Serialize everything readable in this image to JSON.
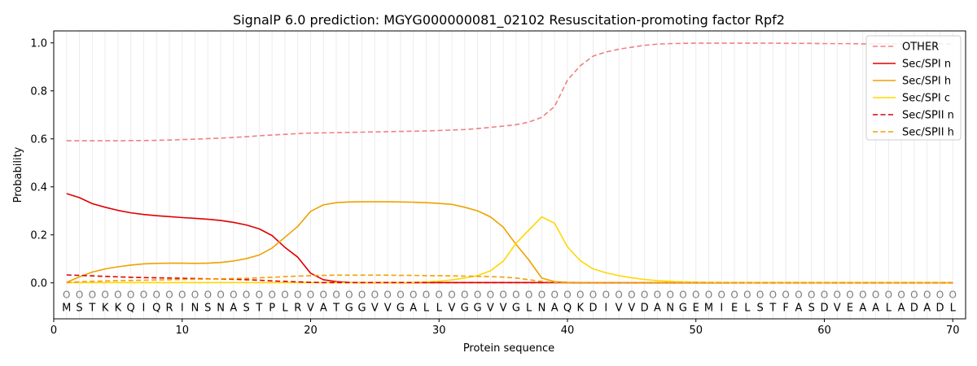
{
  "chart_data": {
    "type": "line",
    "title": "SignalP 6.0 prediction: MGYG000000081_02102 Resuscitation-promoting factor Rpf2",
    "xlabel": "Protein sequence",
    "ylabel": "Probability",
    "xlim": [
      0,
      71
    ],
    "ylim": [
      -0.15,
      1.05
    ],
    "xticks": [
      0,
      10,
      20,
      30,
      40,
      50,
      60,
      70
    ],
    "yticks": [
      0.0,
      0.2,
      0.4,
      0.6,
      0.8,
      1.0
    ],
    "xtick_labels": [
      "0",
      "10",
      "20",
      "30",
      "40",
      "50",
      "60",
      "70"
    ],
    "ytick_labels": [
      "0.0",
      "0.2",
      "0.4",
      "0.6",
      "0.8",
      "1.0"
    ],
    "sequence": "MSTKKQIQRINSNASTPLRVATGGVVGALLVGGVVGLNAQKDIVVDANGEMIELSTFASDVEAALADADL",
    "region_marker": "O",
    "x": [
      1,
      2,
      3,
      4,
      5,
      6,
      7,
      8,
      9,
      10,
      11,
      12,
      13,
      14,
      15,
      16,
      17,
      18,
      19,
      20,
      21,
      22,
      23,
      24,
      25,
      26,
      27,
      28,
      29,
      30,
      31,
      32,
      33,
      34,
      35,
      36,
      37,
      38,
      39,
      40,
      41,
      42,
      43,
      44,
      45,
      46,
      47,
      48,
      49,
      50,
      51,
      52,
      53,
      54,
      55,
      56,
      57,
      58,
      59,
      60,
      61,
      62,
      63,
      64,
      65,
      66,
      67,
      68,
      69,
      70
    ],
    "series": [
      {
        "name": "OTHER",
        "color": "#f08080",
        "style": "dashed",
        "values": [
          0.592,
          0.592,
          0.592,
          0.592,
          0.592,
          0.593,
          0.593,
          0.594,
          0.595,
          0.597,
          0.599,
          0.601,
          0.603,
          0.606,
          0.609,
          0.613,
          0.616,
          0.619,
          0.622,
          0.624,
          0.625,
          0.626,
          0.627,
          0.628,
          0.629,
          0.63,
          0.631,
          0.632,
          0.633,
          0.635,
          0.637,
          0.639,
          0.643,
          0.648,
          0.653,
          0.659,
          0.67,
          0.69,
          0.735,
          0.845,
          0.905,
          0.945,
          0.962,
          0.974,
          0.982,
          0.99,
          0.995,
          0.997,
          0.998,
          0.999,
          0.999,
          0.999,
          0.999,
          0.999,
          0.999,
          0.999,
          0.998,
          0.998,
          0.998,
          0.997,
          0.997,
          0.997,
          0.996,
          0.996,
          0.996,
          0.996,
          0.996,
          0.996,
          0.996,
          0.996
        ]
      },
      {
        "name": "Sec/SPI n",
        "color": "#e00000",
        "style": "solid",
        "values": [
          0.372,
          0.355,
          0.33,
          0.315,
          0.302,
          0.292,
          0.285,
          0.28,
          0.276,
          0.272,
          0.269,
          0.265,
          0.26,
          0.252,
          0.241,
          0.225,
          0.197,
          0.148,
          0.107,
          0.04,
          0.013,
          0.005,
          0.002,
          0.001,
          0.001,
          0.001,
          0.001,
          0.001,
          0.001,
          0.001,
          0.001,
          0.001,
          0.001,
          0.001,
          0.001,
          0.001,
          0.001,
          0.001,
          0.001,
          0.001,
          0.0,
          0.0,
          0.0,
          0.0,
          0.0,
          0.0,
          0.0,
          0.0,
          0.0,
          0.0,
          0.0,
          0.0,
          0.0,
          0.0,
          0.0,
          0.0,
          0.0,
          0.0,
          0.0,
          0.0,
          0.0,
          0.0,
          0.0,
          0.0,
          0.0,
          0.0,
          0.0,
          0.0,
          0.0,
          0.0
        ]
      },
      {
        "name": "Sec/SPI h",
        "color": "#f0a000",
        "style": "solid",
        "values": [
          0.002,
          0.025,
          0.045,
          0.058,
          0.067,
          0.074,
          0.079,
          0.081,
          0.082,
          0.082,
          0.081,
          0.082,
          0.085,
          0.091,
          0.101,
          0.116,
          0.145,
          0.19,
          0.235,
          0.298,
          0.325,
          0.334,
          0.337,
          0.338,
          0.338,
          0.338,
          0.337,
          0.336,
          0.334,
          0.331,
          0.327,
          0.315,
          0.3,
          0.275,
          0.232,
          0.16,
          0.095,
          0.02,
          0.005,
          0.002,
          0.001,
          0.001,
          0.001,
          0.001,
          0.001,
          0.001,
          0.001,
          0.001,
          0.001,
          0.001,
          0.001,
          0.001,
          0.001,
          0.001,
          0.001,
          0.001,
          0.001,
          0.001,
          0.001,
          0.001,
          0.001,
          0.001,
          0.001,
          0.001,
          0.001,
          0.001,
          0.001,
          0.001,
          0.001,
          0.001
        ]
      },
      {
        "name": "Sec/SPI c",
        "color": "#ffd700",
        "style": "solid",
        "values": [
          0.001,
          0.001,
          0.001,
          0.001,
          0.001,
          0.001,
          0.001,
          0.001,
          0.001,
          0.001,
          0.001,
          0.001,
          0.001,
          0.001,
          0.001,
          0.001,
          0.001,
          0.001,
          0.001,
          0.001,
          0.001,
          0.001,
          0.001,
          0.001,
          0.001,
          0.001,
          0.001,
          0.002,
          0.004,
          0.007,
          0.012,
          0.02,
          0.03,
          0.05,
          0.09,
          0.165,
          0.22,
          0.275,
          0.248,
          0.15,
          0.092,
          0.058,
          0.042,
          0.03,
          0.021,
          0.014,
          0.009,
          0.006,
          0.004,
          0.003,
          0.002,
          0.002,
          0.001,
          0.001,
          0.001,
          0.001,
          0.001,
          0.001,
          0.001,
          0.001,
          0.001,
          0.001,
          0.001,
          0.001,
          0.001,
          0.001,
          0.001,
          0.001,
          0.001,
          0.001
        ]
      },
      {
        "name": "Sec/SPII n",
        "color": "#e00000",
        "style": "dashed",
        "values": [
          0.033,
          0.031,
          0.029,
          0.027,
          0.025,
          0.023,
          0.022,
          0.021,
          0.02,
          0.019,
          0.018,
          0.017,
          0.016,
          0.015,
          0.013,
          0.011,
          0.008,
          0.006,
          0.004,
          0.002,
          0.001,
          0.001,
          0.001,
          0.001,
          0.001,
          0.001,
          0.001,
          0.001,
          0.001,
          0.001,
          0.001,
          0.001,
          0.001,
          0.001,
          0.001,
          0.001,
          0.001,
          0.001,
          0.001,
          0.001,
          0.0,
          0.0,
          0.0,
          0.0,
          0.0,
          0.0,
          0.0,
          0.0,
          0.0,
          0.0,
          0.0,
          0.0,
          0.0,
          0.0,
          0.0,
          0.0,
          0.0,
          0.0,
          0.0,
          0.0,
          0.0,
          0.0,
          0.0,
          0.0,
          0.0,
          0.0,
          0.0,
          0.0,
          0.0,
          0.0
        ]
      },
      {
        "name": "Sec/SPII h",
        "color": "#f0a000",
        "style": "dashed",
        "values": [
          0.001,
          0.004,
          0.006,
          0.008,
          0.009,
          0.01,
          0.011,
          0.012,
          0.013,
          0.014,
          0.015,
          0.016,
          0.017,
          0.018,
          0.019,
          0.021,
          0.023,
          0.026,
          0.028,
          0.03,
          0.031,
          0.032,
          0.032,
          0.032,
          0.032,
          0.032,
          0.031,
          0.031,
          0.03,
          0.03,
          0.029,
          0.028,
          0.027,
          0.026,
          0.024,
          0.02,
          0.013,
          0.006,
          0.002,
          0.001,
          0.001,
          0.001,
          0.001,
          0.001,
          0.001,
          0.001,
          0.001,
          0.001,
          0.001,
          0.001,
          0.001,
          0.001,
          0.001,
          0.001,
          0.001,
          0.001,
          0.001,
          0.001,
          0.001,
          0.001,
          0.001,
          0.001,
          0.001,
          0.001,
          0.001,
          0.001,
          0.001,
          0.001,
          0.001,
          0.001
        ]
      }
    ],
    "legend_position": "top-right"
  }
}
